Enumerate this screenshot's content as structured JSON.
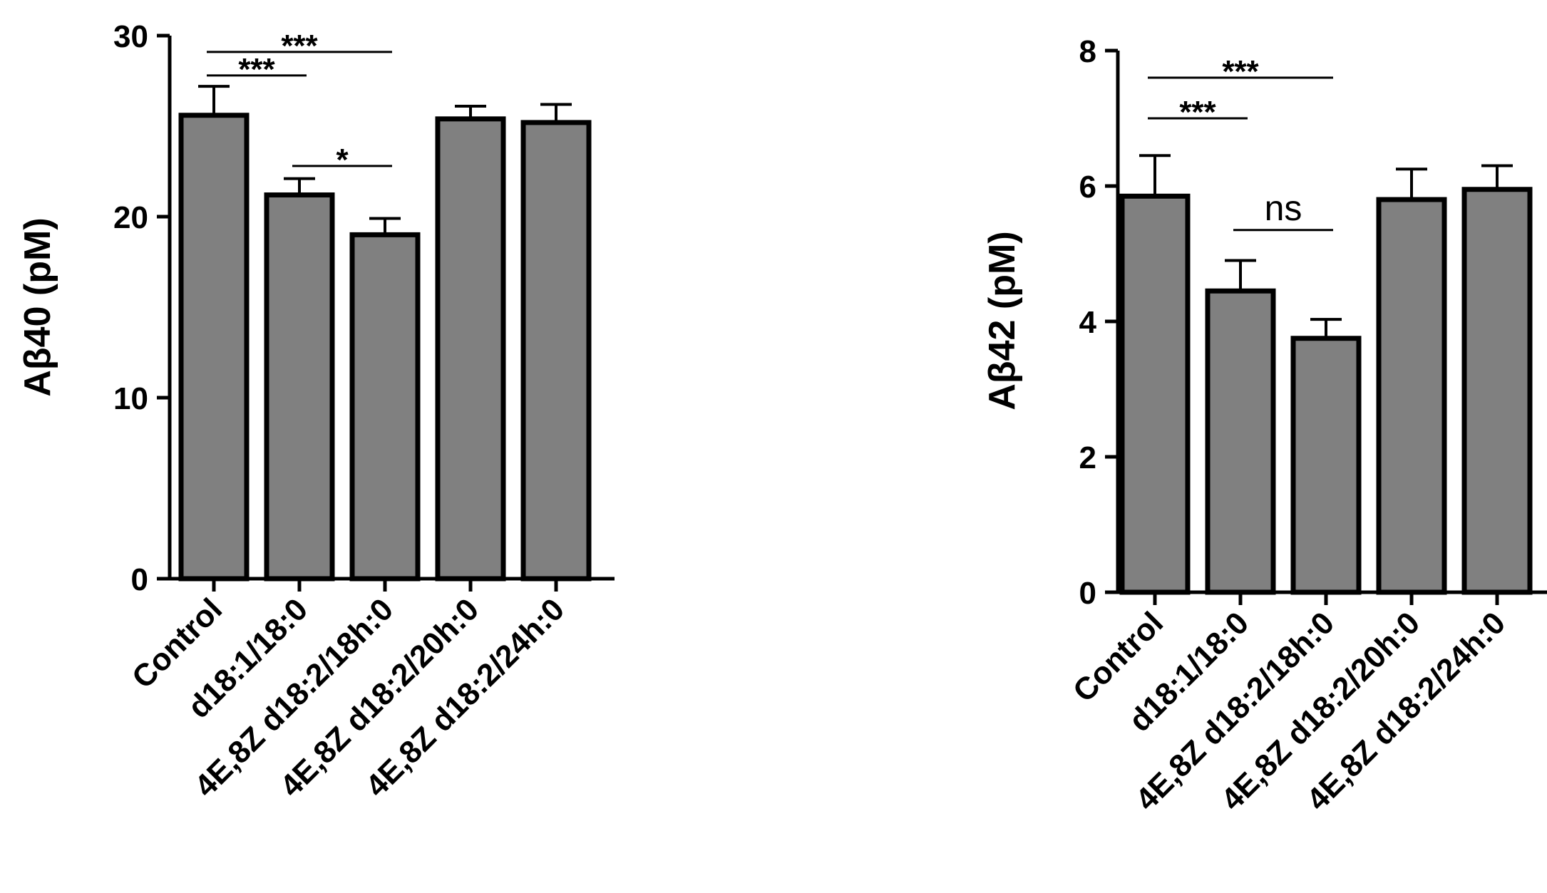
{
  "chart_data": [
    {
      "type": "bar",
      "title": "",
      "xlabel": "",
      "ylabel": "Aβ40 (pM)",
      "ylim": [
        0,
        30
      ],
      "yticks": [
        0,
        10,
        20,
        30
      ],
      "categories": [
        "Control",
        "d18:1/18:0",
        "4E,8Z d18:2/18h:0",
        "4E,8Z d18:2/20h:0",
        "4E,8Z d18:2/24h:0"
      ],
      "values": [
        25.6,
        21.2,
        19.0,
        25.4,
        25.2
      ],
      "errors": [
        1.6,
        0.9,
        0.9,
        0.7,
        1.0
      ],
      "bar_color": "#808080",
      "significance": [
        {
          "from": 0,
          "to": 2,
          "label": "***",
          "y": 29.1
        },
        {
          "from": 0,
          "to": 1,
          "label": "***",
          "y": 27.8
        },
        {
          "from": 1,
          "to": 2,
          "label": "*",
          "y": 22.8
        }
      ]
    },
    {
      "type": "bar",
      "title": "",
      "xlabel": "",
      "ylabel": "Aβ42 (pM)",
      "ylim": [
        0,
        8
      ],
      "yticks": [
        0,
        2,
        4,
        6,
        8
      ],
      "categories": [
        "Control",
        "d18:1/18:0",
        "4E,8Z d18:2/18h:0",
        "4E,8Z d18:2/20h:0",
        "4E,8Z d18:2/24h:0"
      ],
      "values": [
        5.85,
        4.45,
        3.75,
        5.8,
        5.95
      ],
      "errors": [
        0.6,
        0.45,
        0.28,
        0.45,
        0.35
      ],
      "bar_color": "#808080",
      "significance": [
        {
          "from": 0,
          "to": 2,
          "label": "***",
          "y": 7.6
        },
        {
          "from": 0,
          "to": 1,
          "label": "***",
          "y": 7.0
        },
        {
          "from": 1,
          "to": 2,
          "label": "ns",
          "y": 5.35
        }
      ]
    }
  ]
}
